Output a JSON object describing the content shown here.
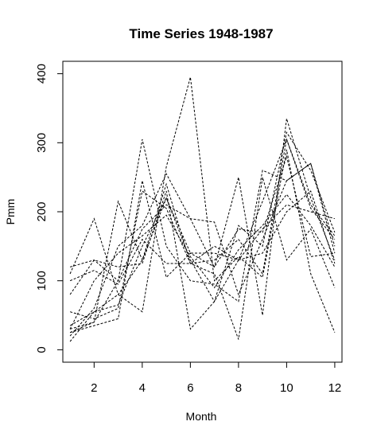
{
  "chart_data": {
    "type": "line",
    "title": "Time Series 1948-1987",
    "xlabel": "Month",
    "ylabel": "Pmm",
    "xlim": [
      0.7,
      12.3
    ],
    "ylim": [
      -18,
      418
    ],
    "xticks": [
      2,
      4,
      6,
      8,
      10,
      12
    ],
    "yticks": [
      0,
      100,
      200,
      300,
      400
    ],
    "line_style": "dashed",
    "line_color": "#000000",
    "x": [
      1,
      2,
      3,
      4,
      5,
      6,
      7,
      8,
      9,
      10,
      11,
      12
    ],
    "series": [
      {
        "values": [
          30,
          40,
          100,
          305,
          150,
          100,
          95,
          70,
          260,
          245,
          270,
          150
        ]
      },
      {
        "values": [
          12,
          55,
          80,
          55,
          265,
          395,
          100,
          135,
          105,
          290,
          110,
          25
        ]
      },
      {
        "values": [
          25,
          35,
          45,
          245,
          105,
          140,
          120,
          250,
          50,
          335,
          220,
          130
        ]
      },
      {
        "values": [
          80,
          130,
          120,
          125,
          230,
          30,
          70,
          130,
          215,
          305,
          210,
          165
        ]
      },
      {
        "values": [
          120,
          130,
          100,
          175,
          210,
          190,
          185,
          80,
          160,
          245,
          270,
          140
        ]
      },
      {
        "values": [
          110,
          190,
          80,
          130,
          220,
          130,
          70,
          180,
          150,
          315,
          260,
          170
        ]
      },
      {
        "values": [
          55,
          45,
          60,
          230,
          205,
          125,
          150,
          130,
          140,
          200,
          230,
          125
        ]
      },
      {
        "values": [
          25,
          40,
          215,
          130,
          240,
          125,
          110,
          15,
          250,
          130,
          175,
          90
        ]
      },
      {
        "values": [
          35,
          55,
          65,
          150,
          220,
          140,
          140,
          130,
          175,
          210,
          200,
          190
        ]
      },
      {
        "values": [
          20,
          60,
          150,
          180,
          255,
          190,
          120,
          175,
          170,
          280,
          135,
          140
        ]
      },
      {
        "values": [
          100,
          115,
          95,
          160,
          125,
          125,
          130,
          160,
          110,
          305,
          205,
          160
        ]
      },
      {
        "values": [
          30,
          100,
          140,
          165,
          195,
          135,
          90,
          145,
          180,
          225,
          180,
          120
        ]
      }
    ]
  }
}
